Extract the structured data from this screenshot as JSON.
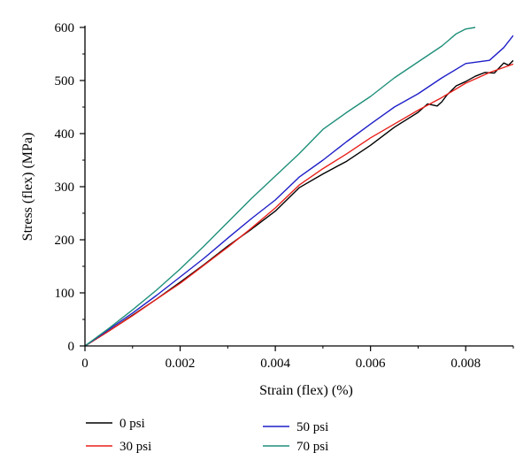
{
  "chart_data": {
    "type": "line",
    "title": "",
    "xlabel": "Strain (flex) (%)",
    "ylabel": "Stress (flex) (MPa)",
    "xlim": [
      0,
      0.009
    ],
    "ylim": [
      0,
      600
    ],
    "x_ticks": [
      0,
      0.002,
      0.004,
      0.006,
      0.008
    ],
    "x_tick_labels": [
      "0",
      "0.002",
      "0.004",
      "0.006",
      "0.008"
    ],
    "y_ticks": [
      0,
      100,
      200,
      300,
      400,
      500,
      600
    ],
    "y_tick_labels": [
      "0",
      "100",
      "200",
      "300",
      "400",
      "500",
      "600"
    ],
    "grid": false,
    "legend_position": "bottom",
    "series": [
      {
        "name": "0 psi",
        "color": "#000000",
        "points": [
          [
            0,
            0
          ],
          [
            0.0005,
            28
          ],
          [
            0.001,
            58
          ],
          [
            0.0015,
            88
          ],
          [
            0.002,
            120
          ],
          [
            0.0025,
            153
          ],
          [
            0.003,
            188
          ],
          [
            0.0035,
            220
          ],
          [
            0.004,
            254
          ],
          [
            0.0045,
            298
          ],
          [
            0.005,
            324
          ],
          [
            0.0055,
            348
          ],
          [
            0.006,
            378
          ],
          [
            0.0065,
            412
          ],
          [
            0.007,
            440
          ],
          [
            0.0072,
            456
          ],
          [
            0.0074,
            452
          ],
          [
            0.0075,
            460
          ],
          [
            0.0076,
            472
          ],
          [
            0.0078,
            490
          ],
          [
            0.008,
            498
          ],
          [
            0.0082,
            508
          ],
          [
            0.0084,
            515
          ],
          [
            0.0086,
            514
          ],
          [
            0.0088,
            533
          ],
          [
            0.0089,
            529
          ],
          [
            0.009,
            538
          ]
        ]
      },
      {
        "name": "30 psi",
        "color": "#e8201a",
        "points": [
          [
            0,
            0
          ],
          [
            0.0005,
            28
          ],
          [
            0.001,
            57
          ],
          [
            0.0015,
            88
          ],
          [
            0.002,
            118
          ],
          [
            0.0025,
            152
          ],
          [
            0.003,
            186
          ],
          [
            0.0035,
            222
          ],
          [
            0.004,
            260
          ],
          [
            0.0045,
            303
          ],
          [
            0.005,
            334
          ],
          [
            0.0055,
            362
          ],
          [
            0.006,
            392
          ],
          [
            0.0065,
            418
          ],
          [
            0.007,
            444
          ],
          [
            0.0075,
            468
          ],
          [
            0.008,
            495
          ],
          [
            0.0085,
            515
          ],
          [
            0.009,
            531
          ]
        ]
      },
      {
        "name": "50 psi",
        "color": "#1f1fc8",
        "points": [
          [
            0,
            0
          ],
          [
            0.0005,
            31
          ],
          [
            0.001,
            62
          ],
          [
            0.0015,
            95
          ],
          [
            0.002,
            130
          ],
          [
            0.0025,
            165
          ],
          [
            0.003,
            203
          ],
          [
            0.0035,
            240
          ],
          [
            0.004,
            275
          ],
          [
            0.0045,
            318
          ],
          [
            0.005,
            350
          ],
          [
            0.0055,
            385
          ],
          [
            0.006,
            418
          ],
          [
            0.0065,
            450
          ],
          [
            0.007,
            475
          ],
          [
            0.0075,
            505
          ],
          [
            0.008,
            532
          ],
          [
            0.0085,
            538
          ],
          [
            0.0088,
            562
          ],
          [
            0.009,
            585
          ]
        ]
      },
      {
        "name": "70 psi",
        "color": "#1f8f7a",
        "points": [
          [
            0,
            0
          ],
          [
            0.0005,
            33
          ],
          [
            0.001,
            68
          ],
          [
            0.0015,
            105
          ],
          [
            0.002,
            145
          ],
          [
            0.0025,
            188
          ],
          [
            0.003,
            233
          ],
          [
            0.0035,
            278
          ],
          [
            0.004,
            320
          ],
          [
            0.0045,
            362
          ],
          [
            0.005,
            408
          ],
          [
            0.0055,
            440
          ],
          [
            0.006,
            470
          ],
          [
            0.0065,
            505
          ],
          [
            0.007,
            535
          ],
          [
            0.0075,
            565
          ],
          [
            0.0078,
            588
          ],
          [
            0.008,
            597
          ],
          [
            0.0082,
            600
          ]
        ]
      }
    ]
  }
}
